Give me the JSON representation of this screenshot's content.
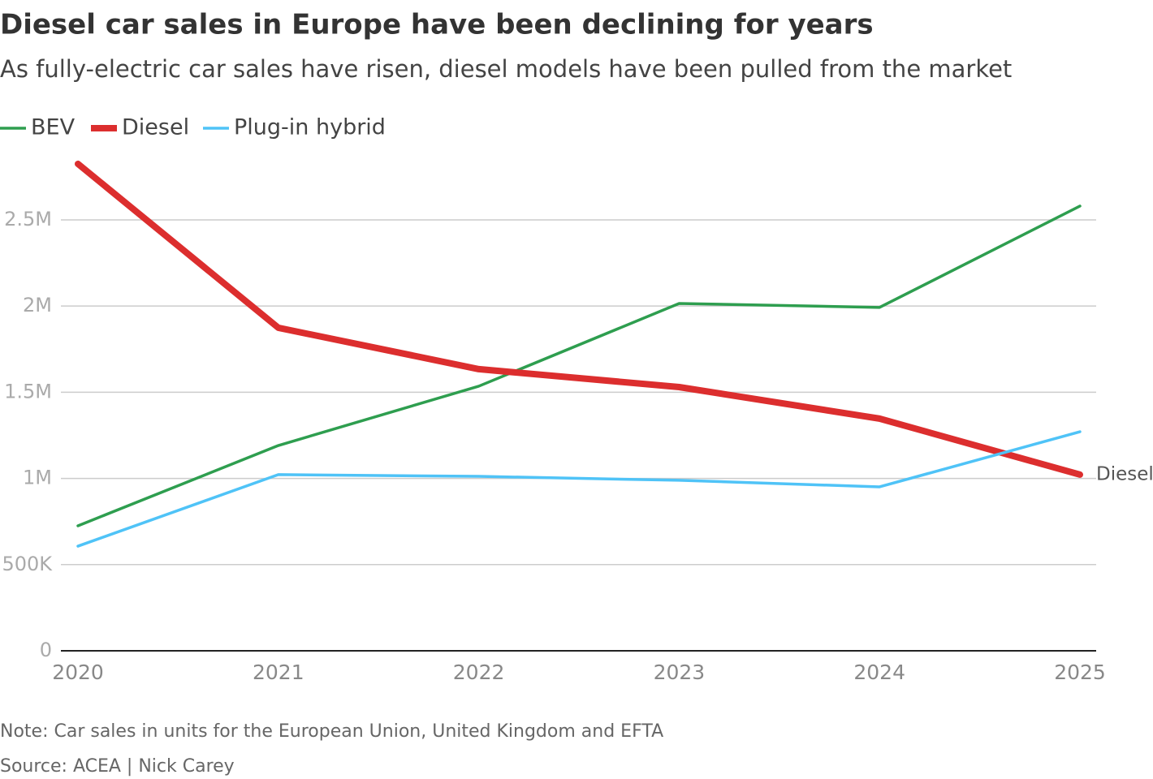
{
  "chart_data": {
    "type": "line",
    "title": "Diesel car sales in Europe have been declining for years",
    "subtitle": "As fully-electric car sales have risen, diesel models have been pulled from the market",
    "categories": [
      "2020",
      "2021",
      "2022",
      "2023",
      "2024",
      "2025"
    ],
    "series": [
      {
        "name": "BEV",
        "color": "#2e9e4f",
        "values": [
          725000,
          1191000,
          1535000,
          2015000,
          1992000,
          2580000
        ]
      },
      {
        "name": "Diesel",
        "color": "#dc2e2e",
        "values": [
          2825000,
          1874000,
          1634000,
          1530000,
          1347000,
          1022000
        ]
      },
      {
        "name": "Plug-in hybrid",
        "color": "#4fc3f7",
        "values": [
          607000,
          1022000,
          1012000,
          989000,
          951000,
          1271000
        ]
      }
    ],
    "ylim": [
      0,
      2900000
    ],
    "yticks": [
      0,
      {
        "value": 500000,
        "label": "500K"
      },
      {
        "value": 1000000,
        "label": "1M"
      },
      {
        "value": 1500000,
        "label": "1.5M"
      },
      {
        "value": 2000000,
        "label": "2M"
      },
      {
        "value": 2500000,
        "label": "2.5M"
      }
    ],
    "grid": true,
    "legend": "top-left",
    "note": "Note: Car sales in units for the European Union, United Kingdom and EFTA",
    "source": "Source: ACEA | Nick Carey"
  }
}
